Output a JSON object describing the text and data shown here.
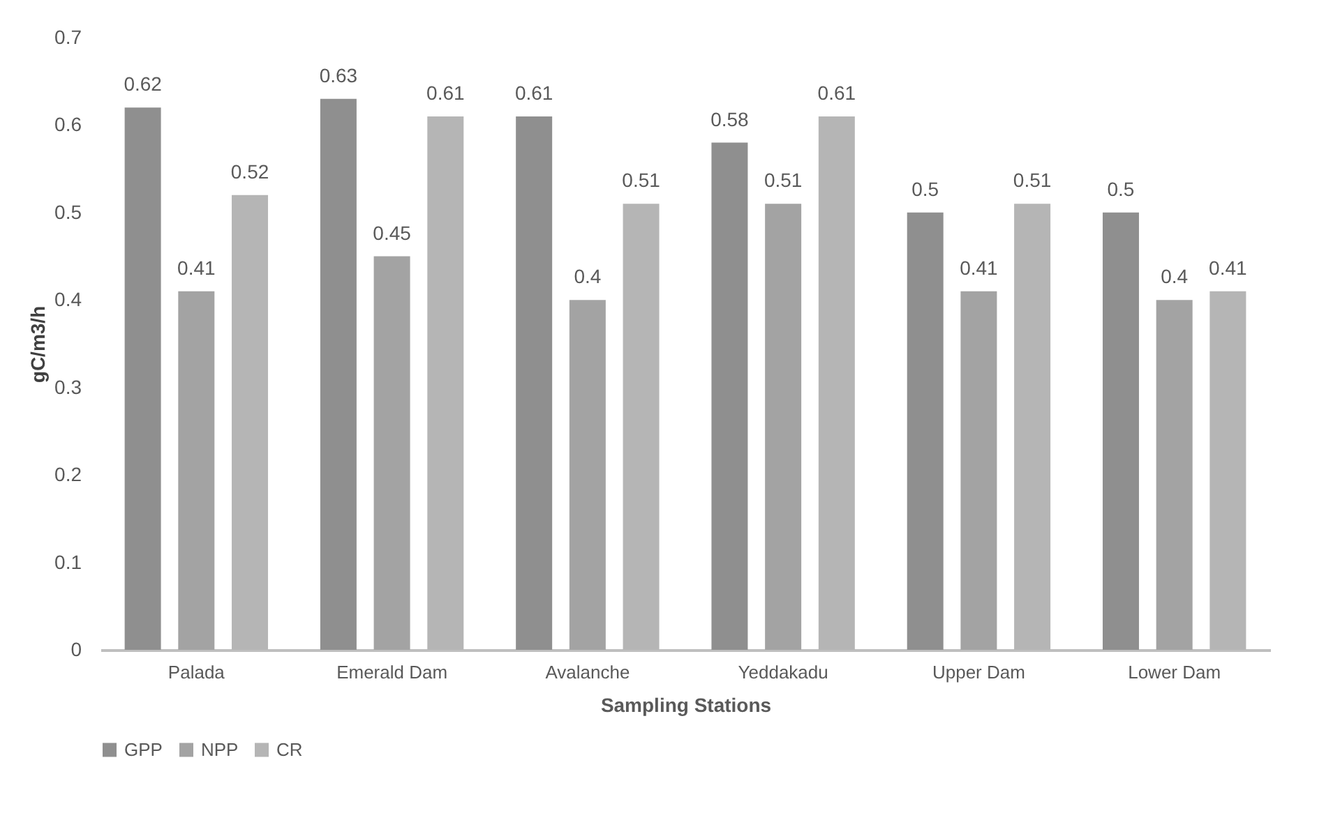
{
  "chart_data": {
    "type": "bar",
    "xlabel": "Sampling Stations",
    "ylabel": "gC/m3/h",
    "categories": [
      "Palada",
      "Emerald Dam",
      "Avalanche",
      "Yeddakadu",
      "Upper Dam",
      "Lower Dam"
    ],
    "series": [
      {
        "name": "GPP",
        "color": "#8f8f8f",
        "values": [
          0.62,
          0.63,
          0.61,
          0.58,
          0.5,
          0.5
        ]
      },
      {
        "name": "NPP",
        "color": "#a3a3a3",
        "values": [
          0.41,
          0.45,
          0.4,
          0.51,
          0.41,
          0.4
        ]
      },
      {
        "name": "CR",
        "color": "#b5b5b5",
        "values": [
          0.52,
          0.61,
          0.51,
          0.61,
          0.51,
          0.41
        ]
      }
    ],
    "ylim": [
      0,
      0.7
    ],
    "yticks": [
      0,
      0.1,
      0.2,
      0.3,
      0.4,
      0.5,
      0.6,
      0.7
    ],
    "data_labels": true,
    "grid": false,
    "legend": "bottom"
  }
}
